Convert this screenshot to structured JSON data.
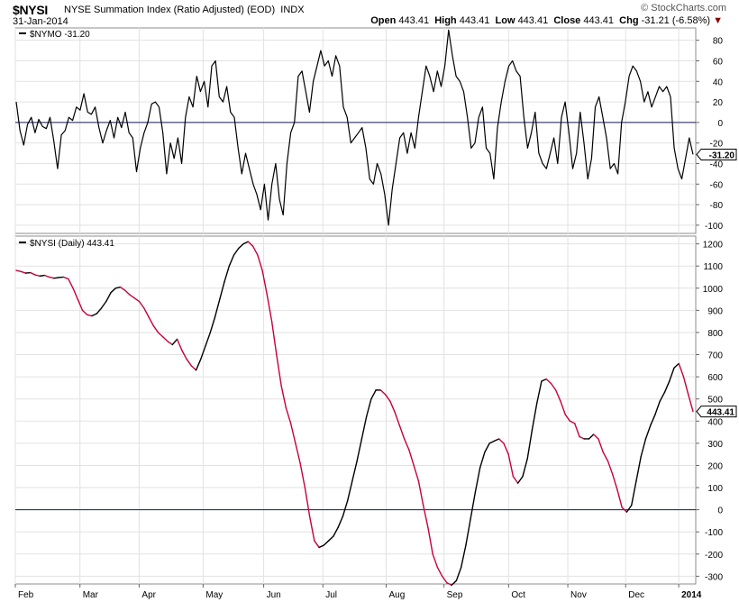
{
  "header": {
    "symbol": "$NYSI",
    "name": "NYSE Summation Index (Ratio Adjusted) (EOD)",
    "exchange": "INDX",
    "date": "31-Jan-2014",
    "watermark": "© StockCharts.com",
    "open_label": "Open",
    "open_value": "443.41",
    "high_label": "High",
    "high_value": "443.41",
    "low_label": "Low",
    "low_value": "443.41",
    "close_label": "Close",
    "close_value": "443.41",
    "chg_label": "Chg",
    "chg_value": "-31.21 (-6.58%)",
    "chg_marker": "▼"
  },
  "chart_data": [
    {
      "type": "line",
      "legend": "$NYMO -31.20",
      "last_label": "-31.20",
      "ylim": [
        -108,
        92
      ],
      "yticks": [
        80,
        60,
        40,
        20,
        0,
        -20,
        -40,
        -60,
        -80,
        -100
      ],
      "reference_line": 0,
      "grid": true,
      "series": [
        {
          "values": [
            20,
            -8,
            -22,
            -2,
            5,
            -10,
            3,
            -4,
            -6,
            5,
            -18,
            -45,
            -12,
            -8,
            5,
            2,
            15,
            12,
            28,
            10,
            8,
            15,
            -5,
            -20,
            -8,
            2,
            -15,
            5,
            -5,
            10,
            -10,
            -15,
            -48,
            -25,
            -10,
            0,
            18,
            20,
            15,
            -10,
            -50,
            -20,
            -35,
            -15,
            -40,
            5,
            25,
            15,
            45,
            30,
            40,
            15,
            55,
            60,
            25,
            20,
            35,
            10,
            5,
            -25,
            -50,
            -30,
            -45,
            -60,
            -70,
            -85,
            -60,
            -95,
            -60,
            -40,
            -75,
            -90,
            -40,
            -10,
            0,
            45,
            50,
            30,
            10,
            40,
            55,
            70,
            55,
            60,
            45,
            65,
            55,
            15,
            5,
            -20,
            -15,
            -10,
            -5,
            -25,
            -55,
            -60,
            -40,
            -50,
            -70,
            -100,
            -65,
            -40,
            -15,
            -10,
            -30,
            -10,
            -25,
            5,
            30,
            55,
            45,
            30,
            50,
            35,
            55,
            90,
            65,
            45,
            40,
            30,
            5,
            -25,
            -20,
            5,
            15,
            -25,
            -30,
            -55,
            -5,
            20,
            40,
            55,
            60,
            50,
            45,
            5,
            -25,
            -10,
            10,
            -30,
            -40,
            -45,
            -30,
            -15,
            -40,
            5,
            20,
            -10,
            -45,
            -30,
            10,
            -20,
            -55,
            -35,
            15,
            25,
            5,
            -15,
            -45,
            -40,
            -50,
            0,
            20,
            45,
            55,
            50,
            40,
            20,
            30,
            15,
            25,
            35,
            30,
            35,
            25,
            -25,
            -45,
            -55,
            -35,
            -15,
            -31.2
          ]
        }
      ]
    },
    {
      "type": "line",
      "legend": "$NYSI (Daily) 443.41",
      "last_label": "443.41",
      "ylim": [
        -335,
        1235
      ],
      "yticks": [
        1200,
        1100,
        1000,
        900,
        800,
        700,
        600,
        500,
        400,
        300,
        200,
        100,
        0,
        -100,
        -200,
        -300
      ],
      "reference_line": 0,
      "grid": true,
      "line_colors": {
        "rising": "#000000",
        "falling": "#c8003c"
      },
      "series": [
        {
          "values": [
            1080,
            1075,
            1068,
            1070,
            1060,
            1055,
            1058,
            1050,
            1045,
            1048,
            1050,
            1042,
            1000,
            950,
            900,
            880,
            875,
            885,
            910,
            940,
            980,
            1000,
            1005,
            990,
            970,
            955,
            940,
            910,
            870,
            830,
            800,
            780,
            760,
            745,
            770,
            720,
            680,
            650,
            630,
            680,
            740,
            800,
            870,
            950,
            1030,
            1100,
            1150,
            1180,
            1200,
            1210,
            1190,
            1150,
            1080,
            970,
            850,
            700,
            560,
            460,
            390,
            300,
            210,
            100,
            -30,
            -140,
            -170,
            -160,
            -140,
            -120,
            -80,
            -30,
            40,
            130,
            220,
            320,
            420,
            500,
            540,
            540,
            520,
            490,
            440,
            380,
            320,
            270,
            200,
            130,
            20,
            -80,
            -200,
            -260,
            -300,
            -330,
            -340,
            -320,
            -260,
            -160,
            -40,
            80,
            190,
            260,
            300,
            310,
            320,
            300,
            250,
            150,
            120,
            150,
            230,
            360,
            480,
            580,
            590,
            570,
            540,
            490,
            430,
            400,
            390,
            330,
            320,
            320,
            340,
            320,
            260,
            220,
            160,
            90,
            10,
            -10,
            20,
            130,
            240,
            320,
            380,
            430,
            490,
            530,
            580,
            640,
            660,
            600,
            520,
            443.41
          ]
        }
      ]
    }
  ],
  "x_axis": {
    "months": [
      "Feb",
      "Mar",
      "Apr",
      "May",
      "Jun",
      "Jul",
      "Aug",
      "Sep",
      "Oct",
      "Nov",
      "Dec",
      "2014"
    ],
    "month_positions": [
      0.0,
      0.095,
      0.182,
      0.276,
      0.365,
      0.452,
      0.545,
      0.63,
      0.725,
      0.812,
      0.897,
      0.975
    ]
  }
}
